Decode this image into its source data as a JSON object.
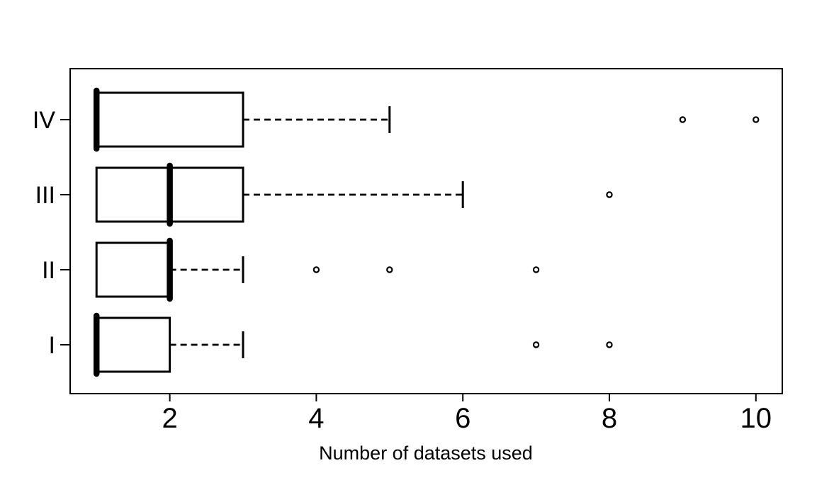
{
  "background": "#ffffff",
  "colors": {
    "foreground": "#000000",
    "box_fill": "#ffffff"
  },
  "chart_data": {
    "type": "boxplot",
    "orientation": "horizontal",
    "title": "",
    "xlabel": "Number of datasets used",
    "ylabel": "",
    "xlim": [
      0.64,
      10.36
    ],
    "x_ticks": [
      2,
      4,
      6,
      8,
      10
    ],
    "grid": false,
    "legend": false,
    "categories": [
      "I",
      "II",
      "III",
      "IV"
    ],
    "series": [
      {
        "name": "I",
        "min": 1,
        "q1": 1,
        "median": 1,
        "q3": 2,
        "whisker_high": 3,
        "outliers": [
          7,
          8
        ]
      },
      {
        "name": "II",
        "min": 1,
        "q1": 1,
        "median": 2,
        "q3": 2,
        "whisker_high": 3,
        "outliers": [
          4,
          5,
          7
        ]
      },
      {
        "name": "III",
        "min": 1,
        "q1": 1,
        "median": 2,
        "q3": 3,
        "whisker_high": 6,
        "outliers": [
          8
        ]
      },
      {
        "name": "IV",
        "min": 1,
        "q1": 1,
        "median": 1,
        "q3": 3,
        "whisker_high": 5,
        "outliers": [
          9,
          10
        ]
      }
    ]
  }
}
